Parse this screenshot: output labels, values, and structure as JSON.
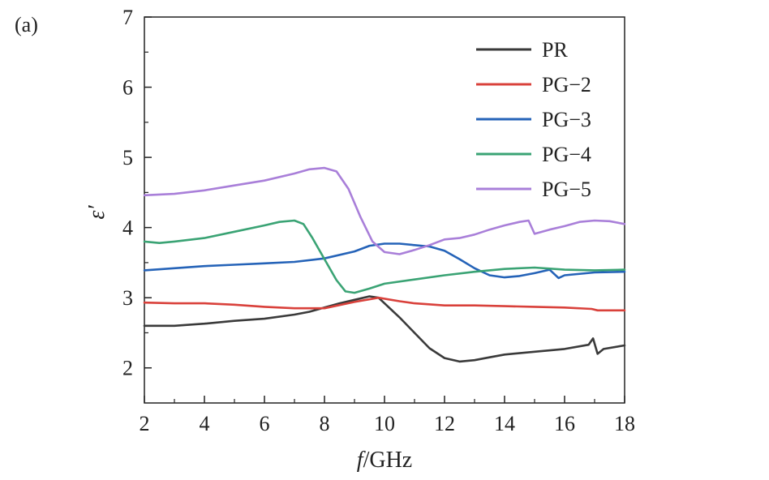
{
  "panel_label": "(a)",
  "chart_data": {
    "type": "line",
    "xlabel_italic": "f",
    "xlabel_rest": "/GHz",
    "ylabel": "ε′",
    "xlim": [
      2,
      18
    ],
    "ylim": [
      1.5,
      7
    ],
    "xticks": [
      2,
      4,
      6,
      8,
      10,
      12,
      14,
      16,
      18
    ],
    "yticks": [
      2,
      3,
      4,
      5,
      6,
      7
    ],
    "grid": false,
    "legend_position": "top-right",
    "series": [
      {
        "name": "PR",
        "color": "#3a3a3a",
        "points": [
          [
            2,
            2.6
          ],
          [
            3,
            2.6
          ],
          [
            4,
            2.63
          ],
          [
            5,
            2.67
          ],
          [
            6,
            2.7
          ],
          [
            7,
            2.76
          ],
          [
            7.5,
            2.8
          ],
          [
            8,
            2.86
          ],
          [
            8.5,
            2.92
          ],
          [
            9,
            2.97
          ],
          [
            9.5,
            3.02
          ],
          [
            9.8,
            3.0
          ],
          [
            10,
            2.92
          ],
          [
            10.5,
            2.72
          ],
          [
            11,
            2.5
          ],
          [
            11.5,
            2.28
          ],
          [
            12,
            2.14
          ],
          [
            12.5,
            2.09
          ],
          [
            13,
            2.11
          ],
          [
            13.5,
            2.15
          ],
          [
            14,
            2.19
          ],
          [
            15,
            2.23
          ],
          [
            16,
            2.27
          ],
          [
            16.8,
            2.33
          ],
          [
            16.95,
            2.42
          ],
          [
            17.1,
            2.2
          ],
          [
            17.3,
            2.27
          ],
          [
            18,
            2.32
          ]
        ]
      },
      {
        "name": "PG−2",
        "color": "#d9413b",
        "points": [
          [
            2,
            2.93
          ],
          [
            3,
            2.92
          ],
          [
            4,
            2.92
          ],
          [
            5,
            2.9
          ],
          [
            6,
            2.87
          ],
          [
            7,
            2.85
          ],
          [
            8,
            2.85
          ],
          [
            9,
            2.94
          ],
          [
            9.8,
            3.0
          ],
          [
            10.5,
            2.95
          ],
          [
            11,
            2.92
          ],
          [
            12,
            2.89
          ],
          [
            13,
            2.89
          ],
          [
            14,
            2.88
          ],
          [
            15,
            2.87
          ],
          [
            16,
            2.86
          ],
          [
            16.9,
            2.84
          ],
          [
            17.1,
            2.82
          ],
          [
            18,
            2.82
          ]
        ]
      },
      {
        "name": "PG−3",
        "color": "#2563b8",
        "points": [
          [
            2,
            3.39
          ],
          [
            3,
            3.42
          ],
          [
            4,
            3.45
          ],
          [
            5,
            3.47
          ],
          [
            6,
            3.49
          ],
          [
            7,
            3.51
          ],
          [
            8,
            3.56
          ],
          [
            9,
            3.66
          ],
          [
            9.5,
            3.74
          ],
          [
            10,
            3.77
          ],
          [
            10.5,
            3.77
          ],
          [
            11,
            3.75
          ],
          [
            11.5,
            3.73
          ],
          [
            12,
            3.67
          ],
          [
            12.5,
            3.55
          ],
          [
            13,
            3.42
          ],
          [
            13.5,
            3.32
          ],
          [
            14,
            3.29
          ],
          [
            14.5,
            3.31
          ],
          [
            15,
            3.35
          ],
          [
            15.5,
            3.4
          ],
          [
            15.8,
            3.28
          ],
          [
            16,
            3.32
          ],
          [
            17,
            3.36
          ],
          [
            18,
            3.37
          ]
        ]
      },
      {
        "name": "PG−4",
        "color": "#3aa374",
        "points": [
          [
            2,
            3.8
          ],
          [
            2.5,
            3.78
          ],
          [
            3,
            3.8
          ],
          [
            4,
            3.85
          ],
          [
            5,
            3.94
          ],
          [
            6,
            4.03
          ],
          [
            6.5,
            4.08
          ],
          [
            7,
            4.1
          ],
          [
            7.3,
            4.05
          ],
          [
            7.6,
            3.85
          ],
          [
            8,
            3.55
          ],
          [
            8.4,
            3.25
          ],
          [
            8.7,
            3.09
          ],
          [
            9,
            3.07
          ],
          [
            9.5,
            3.13
          ],
          [
            10,
            3.2
          ],
          [
            11,
            3.26
          ],
          [
            12,
            3.32
          ],
          [
            13,
            3.37
          ],
          [
            14,
            3.41
          ],
          [
            15,
            3.43
          ],
          [
            16,
            3.4
          ],
          [
            17,
            3.39
          ],
          [
            18,
            3.4
          ]
        ]
      },
      {
        "name": "PG−5",
        "color": "#a97fd9",
        "points": [
          [
            2,
            4.46
          ],
          [
            3,
            4.48
          ],
          [
            4,
            4.53
          ],
          [
            5,
            4.6
          ],
          [
            6,
            4.67
          ],
          [
            7,
            4.77
          ],
          [
            7.5,
            4.83
          ],
          [
            8,
            4.85
          ],
          [
            8.4,
            4.8
          ],
          [
            8.8,
            4.55
          ],
          [
            9.2,
            4.15
          ],
          [
            9.6,
            3.8
          ],
          [
            10,
            3.65
          ],
          [
            10.5,
            3.62
          ],
          [
            11,
            3.68
          ],
          [
            11.5,
            3.75
          ],
          [
            12,
            3.83
          ],
          [
            12.5,
            3.85
          ],
          [
            13,
            3.9
          ],
          [
            13.5,
            3.97
          ],
          [
            14,
            4.03
          ],
          [
            14.5,
            4.08
          ],
          [
            14.8,
            4.1
          ],
          [
            15,
            3.91
          ],
          [
            15.5,
            3.97
          ],
          [
            16,
            4.02
          ],
          [
            16.5,
            4.08
          ],
          [
            17,
            4.1
          ],
          [
            17.5,
            4.09
          ],
          [
            18,
            4.05
          ]
        ]
      }
    ]
  }
}
